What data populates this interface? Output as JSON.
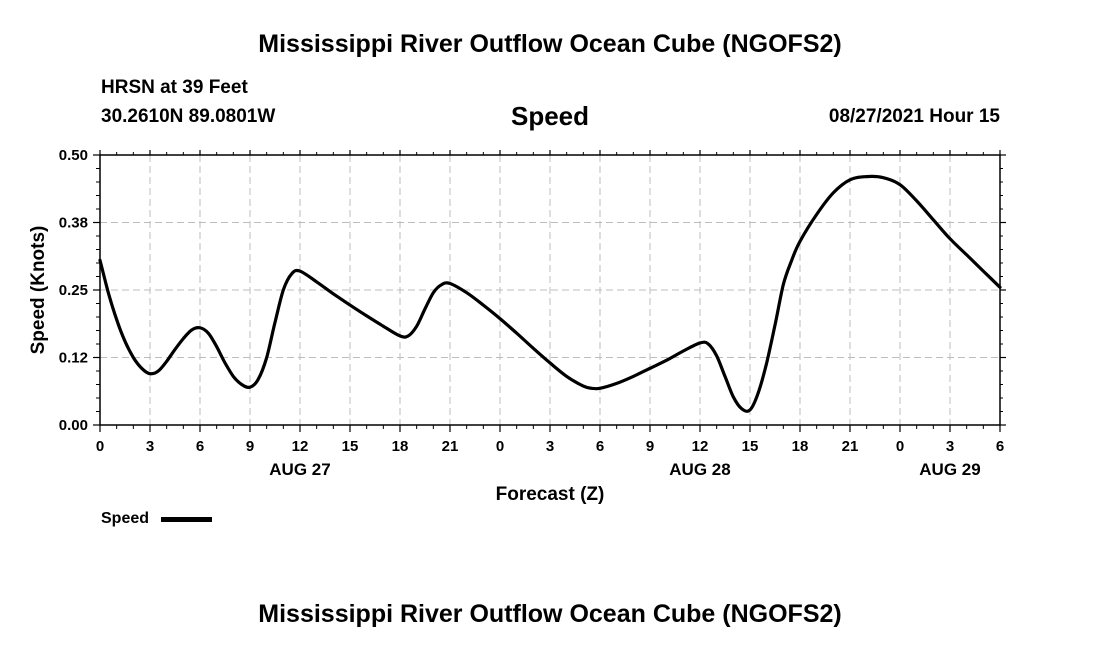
{
  "header": {
    "title": "Mississippi River Outflow Ocean Cube (NGOFS2)",
    "station": "HRSN at 39 Feet",
    "coords": "30.2610N  89.0801W",
    "subtitle": "Speed",
    "datetime": "08/27/2021 Hour 15"
  },
  "footer": {
    "title": "Mississippi River Outflow Ocean Cube (NGOFS2)"
  },
  "legend": {
    "label": "Speed"
  },
  "chart_data": {
    "type": "line",
    "title": "Speed",
    "xlabel": "Forecast (Z)",
    "ylabel": "Speed (Knots)",
    "x_unit": "hours from 2021-08-27 00Z",
    "xlim": [
      0,
      54
    ],
    "ylim": [
      0,
      0.5
    ],
    "y_ticks": [
      0.0,
      0.125,
      0.25,
      0.375,
      0.5
    ],
    "y_tick_labels": [
      "0.00",
      "0.12",
      "0.25",
      "0.38",
      "0.50"
    ],
    "x_ticks": [
      0,
      3,
      6,
      9,
      12,
      15,
      18,
      21,
      24,
      27,
      30,
      33,
      36,
      39,
      42,
      45,
      48,
      51,
      54
    ],
    "x_tick_labels": [
      "0",
      "3",
      "6",
      "9",
      "12",
      "15",
      "18",
      "21",
      "0",
      "3",
      "6",
      "9",
      "12",
      "15",
      "18",
      "21",
      "0",
      "3",
      "6"
    ],
    "date_labels": [
      {
        "x": 12,
        "label": "AUG 27"
      },
      {
        "x": 36,
        "label": "AUG 28"
      },
      {
        "x": 51,
        "label": "AUG 29"
      }
    ],
    "grid": true,
    "series": [
      {
        "name": "Speed",
        "color": "#000000",
        "x": [
          0,
          0.5,
          1,
          1.5,
          2,
          2.5,
          3,
          3.5,
          4,
          4.5,
          5,
          5.5,
          6,
          6.5,
          7,
          7.5,
          8,
          8.5,
          9,
          9.5,
          10,
          10.5,
          11,
          11.5,
          12,
          13,
          14,
          15,
          16,
          17,
          18,
          18.5,
          19,
          19.5,
          20,
          20.5,
          21,
          22,
          23,
          24,
          25,
          26,
          27,
          28,
          29,
          29.5,
          30,
          31,
          32,
          33,
          34,
          35,
          36,
          36.5,
          37,
          37.5,
          38,
          38.5,
          39,
          39.5,
          40,
          40.5,
          41,
          41.5,
          42,
          43,
          44,
          45,
          46,
          47,
          48,
          49,
          50,
          51,
          52,
          53,
          54
        ],
        "values": [
          0.305,
          0.245,
          0.195,
          0.155,
          0.125,
          0.105,
          0.095,
          0.1,
          0.118,
          0.14,
          0.16,
          0.176,
          0.18,
          0.17,
          0.145,
          0.115,
          0.09,
          0.075,
          0.07,
          0.085,
          0.125,
          0.19,
          0.25,
          0.28,
          0.285,
          0.265,
          0.243,
          0.222,
          0.202,
          0.183,
          0.165,
          0.165,
          0.183,
          0.215,
          0.245,
          0.26,
          0.262,
          0.245,
          0.222,
          0.197,
          0.17,
          0.142,
          0.115,
          0.09,
          0.072,
          0.068,
          0.068,
          0.077,
          0.09,
          0.105,
          0.12,
          0.137,
          0.152,
          0.15,
          0.128,
          0.09,
          0.052,
          0.03,
          0.028,
          0.06,
          0.115,
          0.185,
          0.26,
          0.305,
          0.34,
          0.39,
          0.43,
          0.454,
          0.46,
          0.458,
          0.445,
          0.415,
          0.38,
          0.345,
          0.315,
          0.285,
          0.255
        ]
      }
    ]
  }
}
